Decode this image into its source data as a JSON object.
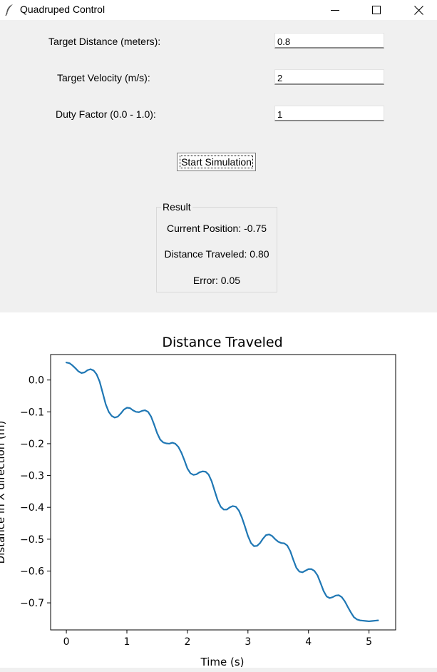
{
  "window": {
    "title": "Quadruped Control",
    "icon": "feather-icon",
    "controls": [
      "minimize-icon",
      "maximize-icon",
      "close-icon"
    ]
  },
  "form": {
    "target_distance_label": "Target Distance (meters):",
    "target_distance_value": "0.8",
    "target_velocity_label": "Target Velocity (m/s):",
    "target_velocity_value": "2",
    "duty_factor_label": "Duty Factor (0.0 - 1.0):",
    "duty_factor_value": "1",
    "start_button_label": "Start Simulation"
  },
  "result": {
    "group_title": "Result",
    "current_position": "Current Position: -0.75",
    "distance_traveled": "Distance Traveled: 0.80",
    "error": "Error: 0.05"
  },
  "colors": {
    "line": "#1f77b4",
    "form_background": "#f0f0f0"
  },
  "chart_data": {
    "type": "line",
    "title": "Distance Traveled",
    "xlabel": "Time (s)",
    "ylabel": "Distance in X direction (m)",
    "xlim": [
      -0.26,
      5.44
    ],
    "ylim": [
      -0.785,
      0.08
    ],
    "xticks": [
      0,
      1,
      2,
      3,
      4,
      5
    ],
    "xtick_labels": [
      "0",
      "1",
      "2",
      "3",
      "4",
      "5"
    ],
    "yticks": [
      0.0,
      -0.1,
      -0.2,
      -0.3,
      -0.4,
      -0.5,
      -0.6,
      -0.7
    ],
    "ytick_labels": [
      "0.0",
      "−0.1",
      "−0.2",
      "−0.3",
      "−0.4",
      "−0.5",
      "−0.6",
      "−0.7"
    ],
    "grid": false,
    "series": [
      {
        "x": [
          0,
          0.05,
          0.1,
          0.15,
          0.2,
          0.25,
          0.3,
          0.35,
          0.4,
          0.45,
          0.5,
          0.55,
          0.6,
          0.65,
          0.7,
          0.75,
          0.8,
          0.85,
          0.9,
          0.95,
          1.0,
          1.05,
          1.1,
          1.15,
          1.2,
          1.25,
          1.3,
          1.35,
          1.4,
          1.45,
          1.5,
          1.55,
          1.6,
          1.65,
          1.7,
          1.75,
          1.8,
          1.85,
          1.9,
          1.95,
          2.0,
          2.05,
          2.1,
          2.15,
          2.2,
          2.25,
          2.3,
          2.35,
          2.4,
          2.45,
          2.5,
          2.55,
          2.6,
          2.65,
          2.7,
          2.75,
          2.8,
          2.85,
          2.9,
          2.95,
          3.0,
          3.05,
          3.1,
          3.15,
          3.2,
          3.25,
          3.3,
          3.35,
          3.4,
          3.45,
          3.5,
          3.55,
          3.6,
          3.65,
          3.7,
          3.75,
          3.8,
          3.85,
          3.9,
          3.95,
          4.0,
          4.05,
          4.1,
          4.15,
          4.2,
          4.25,
          4.3,
          4.35,
          4.4,
          4.45,
          4.5,
          4.55,
          4.6,
          4.65,
          4.7,
          4.75,
          4.8,
          4.85,
          4.9,
          4.95,
          5.0,
          5.05,
          5.1,
          5.15
        ],
        "values": [
          0.055,
          0.053,
          0.046,
          0.037,
          0.027,
          0.022,
          0.024,
          0.031,
          0.034,
          0.03,
          0.018,
          -0.005,
          -0.04,
          -0.076,
          -0.1,
          -0.113,
          -0.118,
          -0.115,
          -0.105,
          -0.093,
          -0.087,
          -0.088,
          -0.095,
          -0.1,
          -0.101,
          -0.097,
          -0.095,
          -0.1,
          -0.115,
          -0.14,
          -0.167,
          -0.187,
          -0.196,
          -0.199,
          -0.2,
          -0.197,
          -0.2,
          -0.21,
          -0.228,
          -0.252,
          -0.278,
          -0.293,
          -0.298,
          -0.296,
          -0.29,
          -0.287,
          -0.288,
          -0.297,
          -0.318,
          -0.348,
          -0.378,
          -0.398,
          -0.407,
          -0.407,
          -0.4,
          -0.396,
          -0.398,
          -0.41,
          -0.432,
          -0.46,
          -0.49,
          -0.512,
          -0.522,
          -0.521,
          -0.512,
          -0.498,
          -0.487,
          -0.485,
          -0.49,
          -0.5,
          -0.508,
          -0.512,
          -0.513,
          -0.52,
          -0.538,
          -0.565,
          -0.59,
          -0.602,
          -0.604,
          -0.599,
          -0.594,
          -0.594,
          -0.6,
          -0.614,
          -0.638,
          -0.663,
          -0.68,
          -0.685,
          -0.682,
          -0.677,
          -0.676,
          -0.682,
          -0.695,
          -0.713,
          -0.73,
          -0.745,
          -0.752,
          -0.755,
          -0.756,
          -0.757,
          -0.758,
          -0.757,
          -0.756,
          -0.755
        ]
      }
    ]
  }
}
